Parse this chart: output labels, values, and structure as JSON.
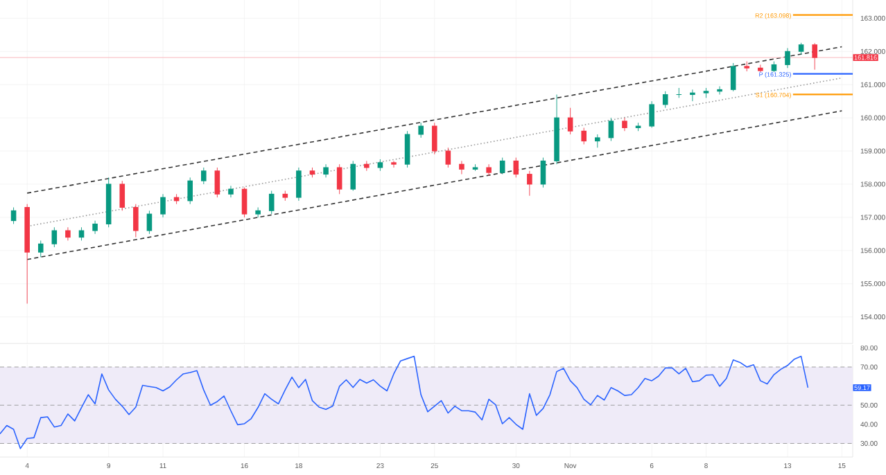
{
  "chart_data": [
    {
      "type": "candlestick",
      "categories": [
        null,
        null,
        null,
        null,
        null,
        null,
        null,
        null,
        null,
        null,
        null,
        null,
        null,
        null,
        null,
        null,
        null,
        null,
        null,
        null,
        null,
        null,
        null,
        null,
        null,
        null,
        null,
        null,
        null,
        null,
        null,
        null,
        null,
        null,
        null,
        null,
        null,
        null,
        null,
        null,
        null,
        null,
        null,
        null,
        null,
        null,
        null,
        null,
        null,
        null,
        null,
        null,
        null,
        null,
        null,
        null,
        null,
        null,
        null,
        null,
        null,
        null,
        null
      ],
      "ohlc": [
        null,
        [
          156.9,
          157.3,
          156.8,
          157.2
        ],
        [
          157.3,
          157.4,
          154.4,
          155.95
        ],
        [
          155.95,
          156.3,
          155.8,
          156.2
        ],
        [
          156.2,
          156.7,
          156.1,
          156.6
        ],
        [
          156.6,
          156.7,
          156.3,
          156.4
        ],
        [
          156.4,
          156.7,
          156.3,
          156.6
        ],
        [
          156.6,
          156.9,
          156.5,
          156.8
        ],
        [
          156.8,
          158.2,
          156.7,
          158.0
        ],
        [
          158.0,
          158.1,
          157.2,
          157.3
        ],
        [
          157.3,
          157.4,
          156.4,
          156.6
        ],
        [
          156.6,
          157.2,
          156.5,
          157.1
        ],
        [
          157.1,
          157.7,
          157.0,
          157.6
        ],
        [
          157.6,
          157.7,
          157.4,
          157.5
        ],
        [
          157.5,
          158.2,
          157.4,
          158.1
        ],
        [
          158.1,
          158.5,
          158.0,
          158.4
        ],
        [
          158.4,
          158.5,
          157.6,
          157.7
        ],
        [
          157.7,
          157.95,
          157.6,
          157.85
        ],
        [
          157.85,
          157.9,
          157.0,
          157.1
        ],
        [
          157.1,
          157.3,
          157.0,
          157.2
        ],
        [
          157.2,
          157.8,
          157.1,
          157.7
        ],
        [
          157.7,
          157.8,
          157.5,
          157.6
        ],
        [
          157.6,
          158.5,
          157.5,
          158.4
        ],
        [
          158.4,
          158.5,
          158.2,
          158.3
        ],
        [
          158.3,
          158.6,
          158.2,
          158.5
        ],
        [
          158.5,
          158.6,
          157.7,
          157.85
        ],
        [
          157.85,
          158.7,
          157.8,
          158.6
        ],
        [
          158.6,
          158.7,
          158.4,
          158.5
        ],
        [
          158.5,
          158.75,
          158.4,
          158.65
        ],
        [
          158.65,
          158.7,
          158.5,
          158.6
        ],
        [
          158.6,
          159.6,
          158.5,
          159.5
        ],
        [
          159.5,
          159.85,
          159.4,
          159.75
        ],
        [
          159.75,
          159.85,
          158.9,
          159.0
        ],
        [
          159.0,
          159.1,
          158.5,
          158.6
        ],
        [
          158.6,
          158.7,
          158.3,
          158.45
        ],
        [
          158.45,
          158.6,
          158.4,
          158.5
        ],
        [
          158.5,
          158.6,
          158.25,
          158.35
        ],
        [
          158.35,
          158.8,
          158.3,
          158.7
        ],
        [
          158.7,
          158.8,
          158.2,
          158.3
        ],
        [
          158.3,
          158.4,
          157.65,
          158.0
        ],
        [
          158.0,
          158.8,
          157.9,
          158.7
        ],
        [
          158.7,
          160.7,
          158.6,
          160.0
        ],
        [
          160.0,
          160.3,
          159.5,
          159.6
        ],
        [
          159.6,
          159.7,
          159.2,
          159.3
        ],
        [
          159.3,
          159.5,
          159.1,
          159.4
        ],
        [
          159.4,
          160.0,
          159.3,
          159.9
        ],
        [
          159.9,
          160.0,
          159.6,
          159.7
        ],
        [
          159.7,
          159.85,
          159.6,
          159.75
        ],
        [
          159.75,
          160.5,
          159.7,
          160.4
        ],
        [
          160.4,
          160.8,
          160.3,
          160.7
        ],
        [
          160.7,
          160.9,
          160.6,
          160.7
        ],
        [
          160.7,
          160.85,
          160.5,
          160.75
        ],
        [
          160.75,
          160.9,
          160.6,
          160.8
        ],
        [
          160.8,
          160.95,
          160.7,
          160.85
        ],
        [
          160.85,
          161.65,
          160.8,
          161.55
        ],
        [
          161.55,
          161.7,
          161.4,
          161.5
        ],
        [
          161.5,
          161.6,
          161.38,
          161.42
        ],
        [
          161.42,
          161.7,
          161.38,
          161.6
        ],
        [
          161.6,
          162.1,
          161.5,
          162.0
        ],
        [
          162.0,
          162.26,
          161.9,
          162.2
        ],
        [
          162.2,
          162.25,
          161.45,
          161.816
        ],
        null,
        null
      ],
      "series": [
        {
          "type": "line",
          "values": [
            null,
            null,
            157.73,
            null,
            null,
            null,
            null,
            null,
            null,
            null,
            null,
            null,
            null,
            null,
            null,
            null,
            null,
            null,
            null,
            null,
            null,
            null,
            null,
            null,
            null,
            null,
            null,
            null,
            null,
            null,
            null,
            null,
            null,
            null,
            null,
            null,
            null,
            null,
            null,
            null,
            null,
            null,
            null,
            null,
            null,
            null,
            null,
            null,
            null,
            null,
            null,
            null,
            null,
            null,
            null,
            null,
            null,
            null,
            null,
            null,
            null,
            null,
            162.14
          ],
          "color": "#333333",
          "line_style": "dashed"
        },
        {
          "type": "line",
          "values": [
            null,
            null,
            156.73,
            null,
            null,
            null,
            null,
            null,
            null,
            null,
            null,
            null,
            null,
            null,
            null,
            null,
            null,
            null,
            null,
            null,
            null,
            null,
            null,
            null,
            null,
            null,
            null,
            null,
            null,
            null,
            null,
            null,
            null,
            null,
            null,
            null,
            null,
            null,
            null,
            null,
            null,
            null,
            null,
            null,
            null,
            null,
            null,
            null,
            null,
            null,
            null,
            null,
            null,
            null,
            null,
            null,
            null,
            null,
            null,
            null,
            null,
            null,
            161.2
          ],
          "color": "#999999",
          "line_style": "dotted"
        },
        {
          "type": "line",
          "values": [
            null,
            null,
            155.73,
            null,
            null,
            null,
            null,
            null,
            null,
            null,
            null,
            null,
            null,
            null,
            null,
            null,
            null,
            null,
            null,
            null,
            null,
            null,
            null,
            null,
            null,
            null,
            null,
            null,
            null,
            null,
            null,
            null,
            null,
            null,
            null,
            null,
            null,
            null,
            null,
            null,
            null,
            null,
            null,
            null,
            null,
            null,
            null,
            null,
            null,
            null,
            null,
            null,
            null,
            null,
            null,
            null,
            null,
            null,
            null,
            null,
            null,
            null,
            160.21
          ],
          "color": "#333333",
          "line_style": "dashed"
        }
      ],
      "ref_lines": [
        {
          "axis": "y",
          "value": 163.098,
          "label": "R2 (163.098)",
          "color": "#ff9800"
        },
        {
          "axis": "y",
          "value": 161.325,
          "label": "P (161.325)",
          "color": "#2962ff"
        },
        {
          "axis": "y",
          "value": 160.704,
          "label": "S1 (160.704)",
          "color": "#ff9800"
        },
        {
          "axis": "y",
          "value": 161.816,
          "color": "#fab9be"
        }
      ],
      "annotations": [
        "161.816"
      ],
      "ylim": [
        153.2,
        163.55
      ],
      "yticks": [
        {
          "value": 154,
          "label": "154.000"
        },
        {
          "value": 155,
          "label": "155.000"
        },
        {
          "value": 156,
          "label": "156.000"
        },
        {
          "value": 157,
          "label": "157.000"
        },
        {
          "value": 158,
          "label": "158.000"
        },
        {
          "value": 159,
          "label": "159.000"
        },
        {
          "value": 160,
          "label": "160.000"
        },
        {
          "value": 161,
          "label": "161.000"
        },
        {
          "value": 162,
          "label": "162.000"
        },
        {
          "value": 163,
          "label": "163.000"
        }
      ],
      "grid": true,
      "tick_labels": "y"
    },
    {
      "type": "line",
      "categories": [
        null,
        null,
        null,
        null,
        "4",
        null,
        null,
        null,
        null,
        null,
        null,
        null,
        null,
        null,
        null,
        null,
        "9",
        null,
        null,
        null,
        null,
        null,
        null,
        null,
        "11",
        null,
        null,
        null,
        null,
        null,
        null,
        null,
        null,
        null,
        null,
        null,
        "16",
        null,
        null,
        null,
        null,
        null,
        null,
        null,
        "18",
        null,
        null,
        null,
        null,
        null,
        null,
        null,
        null,
        null,
        null,
        null,
        "23",
        null,
        null,
        null,
        null,
        null,
        null,
        null,
        "25",
        null,
        null,
        null,
        null,
        null,
        null,
        null,
        null,
        null,
        null,
        null,
        "30",
        null,
        null,
        null,
        null,
        null,
        null,
        null,
        "Nov",
        null,
        null,
        null,
        null,
        null,
        null,
        null,
        null,
        null,
        null,
        null,
        "6",
        null,
        null,
        null,
        null,
        null,
        null,
        null,
        "8",
        null,
        null,
        null,
        null,
        null,
        null,
        null,
        null,
        null,
        null,
        null,
        "13",
        null,
        null,
        null,
        null,
        null,
        null,
        null,
        "15"
      ],
      "series": [
        {
          "color": "#2962ff",
          "values": [
            35.0,
            39.4,
            37.4,
            27.3,
            32.6,
            33.0,
            43.5,
            43.9,
            38.6,
            39.4,
            45.4,
            41.8,
            48.8,
            55.5,
            50.7,
            66.4,
            58.0,
            53.1,
            49.5,
            45.1,
            49.0,
            60.4,
            59.8,
            59.2,
            57.5,
            59.6,
            63.3,
            66.4,
            67.1,
            68.1,
            58.0,
            50.0,
            51.9,
            54.8,
            47.1,
            39.8,
            40.3,
            43.0,
            48.8,
            56.0,
            53.1,
            50.7,
            58.0,
            64.7,
            59.2,
            63.5,
            52.4,
            49.0,
            47.8,
            49.5,
            59.9,
            63.3,
            59.3,
            63.5,
            61.6,
            63.3,
            60.0,
            57.5,
            66.4,
            73.2,
            74.4,
            75.6,
            55.5,
            46.6,
            49.5,
            52.4,
            45.9,
            49.5,
            47.1,
            47.1,
            46.4,
            42.3,
            53.1,
            50.2,
            40.3,
            43.5,
            40.0,
            37.4,
            56.0,
            44.7,
            48.3,
            55.5,
            67.6,
            69.3,
            62.8,
            59.2,
            53.1,
            50.2,
            55.1,
            52.7,
            59.2,
            57.5,
            55.1,
            55.5,
            59.2,
            64.0,
            62.8,
            65.2,
            69.5,
            69.5,
            66.4,
            69.3,
            62.3,
            62.8,
            65.7,
            65.9,
            59.9,
            64.0,
            73.7,
            72.4,
            70.0,
            71.2,
            62.8,
            61.1,
            66.0,
            68.8,
            70.8,
            74.1,
            75.6,
            59.17,
            null,
            null,
            null,
            null,
            null
          ]
        }
      ],
      "bands": [
        {
          "axis": "y",
          "from": 30,
          "to": 70,
          "color": "#efebf8"
        }
      ],
      "ref_lines": [
        {
          "axis": "y",
          "value": 70,
          "color": "#9e9e9e",
          "line_style": "dashed"
        },
        {
          "axis": "y",
          "value": 50,
          "color": "#9e9e9e",
          "line_style": "dashed"
        },
        {
          "axis": "y",
          "value": 30,
          "color": "#9e9e9e",
          "line_style": "dashed"
        }
      ],
      "annotations": [
        "59.17"
      ],
      "ylim": [
        22.9,
        81.6
      ],
      "yticks": [
        {
          "value": 30,
          "label": "30.00"
        },
        {
          "value": 40,
          "label": "40.00"
        },
        {
          "value": 50,
          "label": "50.00"
        },
        {
          "value": 70,
          "label": "70.00"
        },
        {
          "value": 80,
          "label": "80.00"
        }
      ],
      "grid": "x"
    }
  ]
}
